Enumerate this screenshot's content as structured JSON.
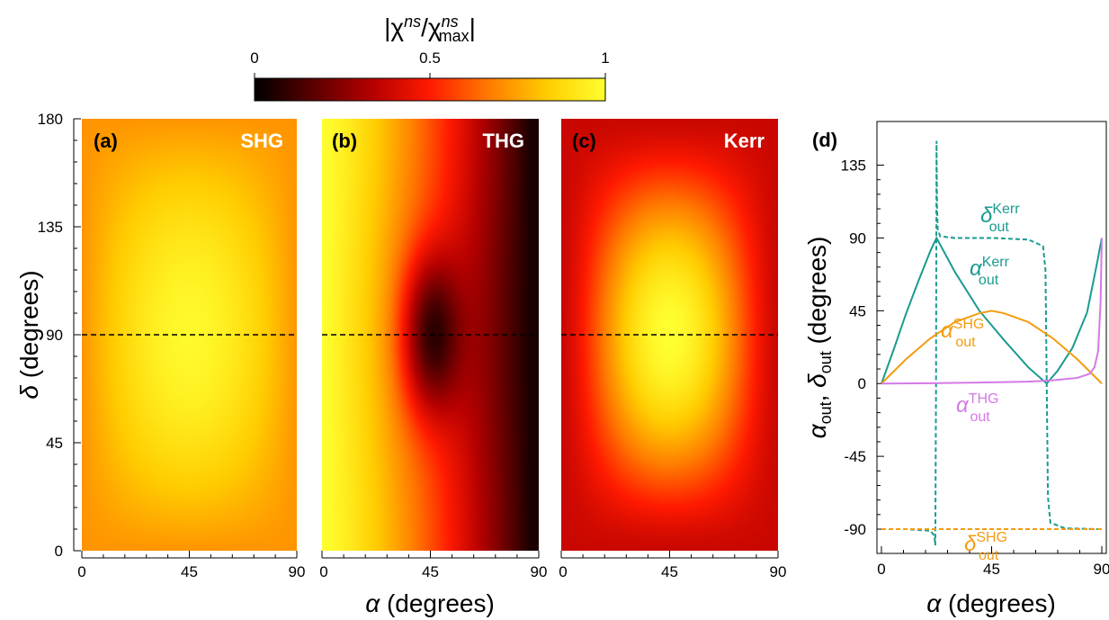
{
  "colorbar": {
    "label": "|χns/χnsmax|",
    "ticks": [
      0,
      0.5,
      1
    ],
    "tick_labels": [
      "0",
      "0.5",
      "1"
    ],
    "colors": [
      "#000000",
      "#5a0000",
      "#b40000",
      "#ff1a00",
      "#ff7a00",
      "#ffcc00",
      "#ffff30"
    ]
  },
  "chart_data": [
    {
      "type": "heatmap",
      "panel": "(a)",
      "label": "SHG",
      "x_range": [
        0,
        90
      ],
      "y_range": [
        0,
        180
      ],
      "x_ticks": [
        0,
        45,
        90
      ],
      "y_ticks": [
        0,
        45,
        90,
        135,
        180
      ],
      "value_range": [
        0,
        1
      ],
      "approx_max_value": 0.98,
      "approx_max_at": [
        45,
        90
      ],
      "approx_corner_value": 0.72,
      "dashed_line_y": 90
    },
    {
      "type": "heatmap",
      "panel": "(b)",
      "label": "THG",
      "x_range": [
        0,
        90
      ],
      "y_range": [
        0,
        180
      ],
      "x_ticks": [
        0,
        45,
        90
      ],
      "value_range": [
        0,
        1
      ],
      "approx_min_value": 0.05,
      "approx_min_at": [
        45,
        90
      ],
      "approx_value_at_x0": 1.0,
      "approx_value_at_x90": 0.0,
      "dashed_line_y": 90
    },
    {
      "type": "heatmap",
      "panel": "(c)",
      "label": "Kerr",
      "x_range": [
        0,
        90
      ],
      "y_range": [
        0,
        180
      ],
      "x_ticks": [
        0,
        45,
        90
      ],
      "value_range": [
        0,
        1
      ],
      "approx_max_value": 1.0,
      "approx_max_at": [
        45,
        90
      ],
      "approx_corner_value": 0.38,
      "dashed_line_y": 90
    },
    {
      "type": "line",
      "panel": "(d)",
      "xlabel": "α (degrees)",
      "ylabel": "αout, δout (degrees)",
      "x_ticks": [
        0,
        45,
        90
      ],
      "y_ticks": [
        -90,
        -45,
        0,
        45,
        90,
        135
      ],
      "xlim": [
        0,
        90
      ],
      "ylim": [
        -105,
        162
      ],
      "series": [
        {
          "name": "αoutKerr",
          "color": "#1a9b8f",
          "style": "solid",
          "x": [
            0,
            5,
            10,
            15,
            20,
            22.5,
            30,
            40,
            50,
            60,
            67.5,
            72,
            78,
            84,
            88,
            90
          ],
          "y": [
            0,
            21,
            43,
            63,
            82,
            90,
            69,
            45,
            27,
            10,
            0,
            8,
            22,
            44,
            74,
            90
          ]
        },
        {
          "name": "δoutKerr",
          "color": "#1a9b8f",
          "style": "dashed",
          "x": [
            0,
            10,
            20,
            21.6,
            22.0,
            22.3,
            22.5,
            22.7,
            23.0,
            24,
            30,
            45,
            60,
            66,
            67,
            67.5,
            68,
            69,
            75,
            90
          ],
          "y": [
            -90,
            -90,
            -91,
            -94,
            -100,
            0,
            150,
            110,
            95,
            91,
            90,
            90,
            89,
            85,
            70,
            0,
            -70,
            -86,
            -89.5,
            -90
          ]
        },
        {
          "name": "αoutSHG",
          "color": "#f39c12",
          "style": "solid",
          "x": [
            0,
            10,
            20,
            30,
            40,
            45,
            50,
            60,
            70,
            80,
            90
          ],
          "y": [
            0,
            15,
            28,
            38,
            43.5,
            45,
            43.5,
            38,
            28,
            15,
            0
          ]
        },
        {
          "name": "δoutSHG",
          "color": "#f39c12",
          "style": "dashed",
          "x": [
            0,
            90
          ],
          "y": [
            -90,
            -90
          ]
        },
        {
          "name": "αoutTHG",
          "color": "#d479e6",
          "style": "solid",
          "x": [
            0,
            20,
            40,
            60,
            70,
            80,
            85,
            87,
            88.5,
            89.5,
            90
          ],
          "y": [
            0,
            0.2,
            0.6,
            1.2,
            2,
            3.5,
            6,
            10,
            20,
            50,
            90
          ]
        }
      ]
    }
  ],
  "panels": {
    "a": {
      "tag": "(a)",
      "name": "SHG"
    },
    "b": {
      "tag": "(b)",
      "name": "THG"
    },
    "c": {
      "tag": "(c)",
      "name": "Kerr"
    },
    "d": {
      "tag": "(d)"
    }
  },
  "axes": {
    "delta_label_symbol": "δ",
    "delta_label_unit": " (degrees)",
    "alpha_symbol": "α",
    "alpha_unit": " (degrees)",
    "out_symbol_alpha": "α",
    "out_symbol_delta": "δ",
    "out_sub": "out",
    "out_unit": " (degrees)",
    "comma": ","
  },
  "curve_labels": {
    "delta_kerr": {
      "symbol": "δ",
      "sup": "Kerr",
      "sub": "out"
    },
    "alpha_kerr": {
      "symbol": "α",
      "sup": "Kerr",
      "sub": "out"
    },
    "alpha_shg": {
      "symbol": "α",
      "sup": "SHG",
      "sub": "out"
    },
    "alpha_thg": {
      "symbol": "α",
      "sup": "THG",
      "sub": "out"
    },
    "delta_shg": {
      "symbol": "δ",
      "sup": "SHG",
      "sub": "out"
    }
  }
}
